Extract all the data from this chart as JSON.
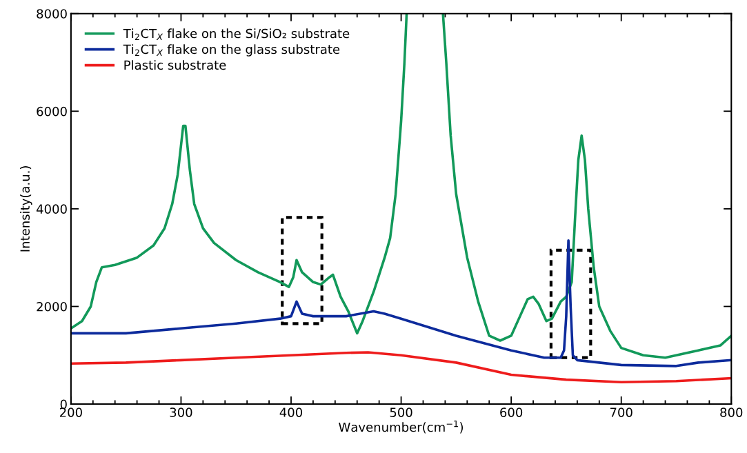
{
  "chart_data": {
    "type": "line",
    "xlabel": "Wavenumber(cm$^{−1}$)",
    "ylabel": "Intensity(a.u.)",
    "xlim": [
      200,
      800
    ],
    "xticks": [
      200,
      300,
      400,
      500,
      600,
      700,
      800
    ],
    "ylim": [
      0,
      8000
    ],
    "yticks": [
      0,
      2000,
      4000,
      6000,
      8000
    ],
    "grid": false,
    "legend": "top left",
    "line_style": "solid",
    "marker": "none",
    "series": [
      {
        "name": "Ti$_{2}$CT$_{X}$ flake on the Si/SiO₂ substrate",
        "color": "#12995a",
        "x": [
          200,
          210,
          218,
          223,
          228,
          240,
          260,
          275,
          285,
          292,
          297,
          300,
          302,
          304,
          308,
          312,
          320,
          330,
          350,
          370,
          390,
          398,
          402,
          405,
          410,
          420,
          427,
          435,
          438,
          445,
          452,
          460,
          465,
          475,
          485,
          490,
          495,
          500,
          503,
          505,
          520,
          538,
          541,
          545,
          550,
          560,
          570,
          580,
          590,
          600,
          608,
          615,
          620,
          625,
          632,
          637,
          645,
          650,
          655,
          658,
          661,
          664,
          667,
          670,
          675,
          680,
          690,
          700,
          720,
          740,
          750,
          770,
          790,
          800
        ],
        "values": [
          1550,
          1700,
          2000,
          2500,
          2800,
          2850,
          3000,
          3250,
          3600,
          4100,
          4700,
          5300,
          5700,
          5700,
          4800,
          4100,
          3600,
          3300,
          2950,
          2700,
          2500,
          2400,
          2600,
          2950,
          2700,
          2500,
          2450,
          2600,
          2650,
          2200,
          1900,
          1450,
          1700,
          2300,
          3000,
          3400,
          4300,
          5800,
          7000,
          8000,
          null,
          8000,
          7000,
          5500,
          4300,
          3000,
          2100,
          1400,
          1300,
          1400,
          1800,
          2150,
          2200,
          2050,
          1700,
          1750,
          2100,
          2200,
          2500,
          3800,
          5000,
          5500,
          5000,
          4000,
          2800,
          2000,
          1500,
          1150,
          1000,
          950,
          1000,
          1100,
          1200,
          1400
        ]
      },
      {
        "name": "Ti$_{2}$CT$_{X}$ flake on the glass substrate",
        "color": "#0d2b9c",
        "x": [
          200,
          250,
          300,
          350,
          390,
          400,
          405,
          410,
          420,
          450,
          475,
          485,
          500,
          550,
          600,
          630,
          645,
          648,
          650,
          652,
          654,
          656,
          660,
          700,
          750,
          770,
          800
        ],
        "values": [
          1450,
          1450,
          1550,
          1650,
          1750,
          1800,
          2100,
          1850,
          1800,
          1800,
          1900,
          1850,
          1750,
          1400,
          1100,
          950,
          950,
          1100,
          1800,
          3350,
          2000,
          1000,
          900,
          800,
          780,
          850,
          900
        ]
      },
      {
        "name": "Plastic substrate",
        "color": "#ee1c1c",
        "x": [
          200,
          250,
          300,
          350,
          400,
          450,
          470,
          500,
          550,
          600,
          650,
          700,
          750,
          800
        ],
        "values": [
          830,
          850,
          900,
          950,
          1000,
          1050,
          1060,
          1000,
          850,
          600,
          500,
          450,
          470,
          530
        ]
      }
    ]
  }
}
